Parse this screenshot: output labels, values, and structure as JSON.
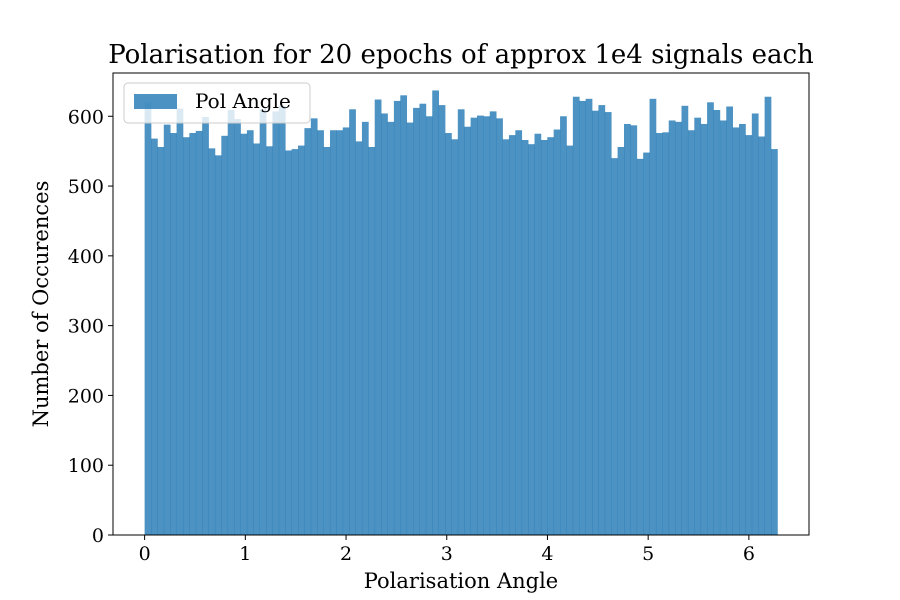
{
  "chart_data": {
    "type": "bar",
    "title": "Polarisation for 20 epochs of approx 1e4 signals each",
    "xlabel": "Polarisation Angle",
    "ylabel": "Number of Occurences",
    "xlim": [
      -0.314,
      6.597
    ],
    "ylim": [
      0,
      662
    ],
    "x_ticks": [
      0,
      1,
      2,
      3,
      4,
      5,
      6
    ],
    "y_ticks": [
      0,
      100,
      200,
      300,
      400,
      500,
      600
    ],
    "grid": false,
    "legend_position": "top-left",
    "bin_range": [
      0,
      6.2832
    ],
    "series": [
      {
        "name": "Pol Angle",
        "color": "#1f77b4",
        "opacity": 0.8,
        "values": [
          620,
          568,
          556,
          588,
          576,
          611,
          570,
          576,
          579,
          599,
          554,
          544,
          572,
          609,
          596,
          575,
          580,
          561,
          610,
          557,
          607,
          615,
          551,
          553,
          558,
          583,
          597,
          580,
          556,
          580,
          580,
          584,
          610,
          564,
          592,
          556,
          624,
          604,
          592,
          622,
          630,
          591,
          612,
          618,
          600,
          637,
          616,
          576,
          567,
          610,
          585,
          598,
          601,
          600,
          607,
          597,
          567,
          573,
          580,
          566,
          560,
          575,
          566,
          570,
          581,
          600,
          558,
          628,
          622,
          625,
          608,
          616,
          606,
          540,
          556,
          589,
          587,
          539,
          548,
          625,
          576,
          577,
          594,
          592,
          615,
          580,
          598,
          589,
          620,
          609,
          594,
          614,
          584,
          589,
          573,
          604,
          571,
          628,
          553
        ]
      }
    ]
  }
}
